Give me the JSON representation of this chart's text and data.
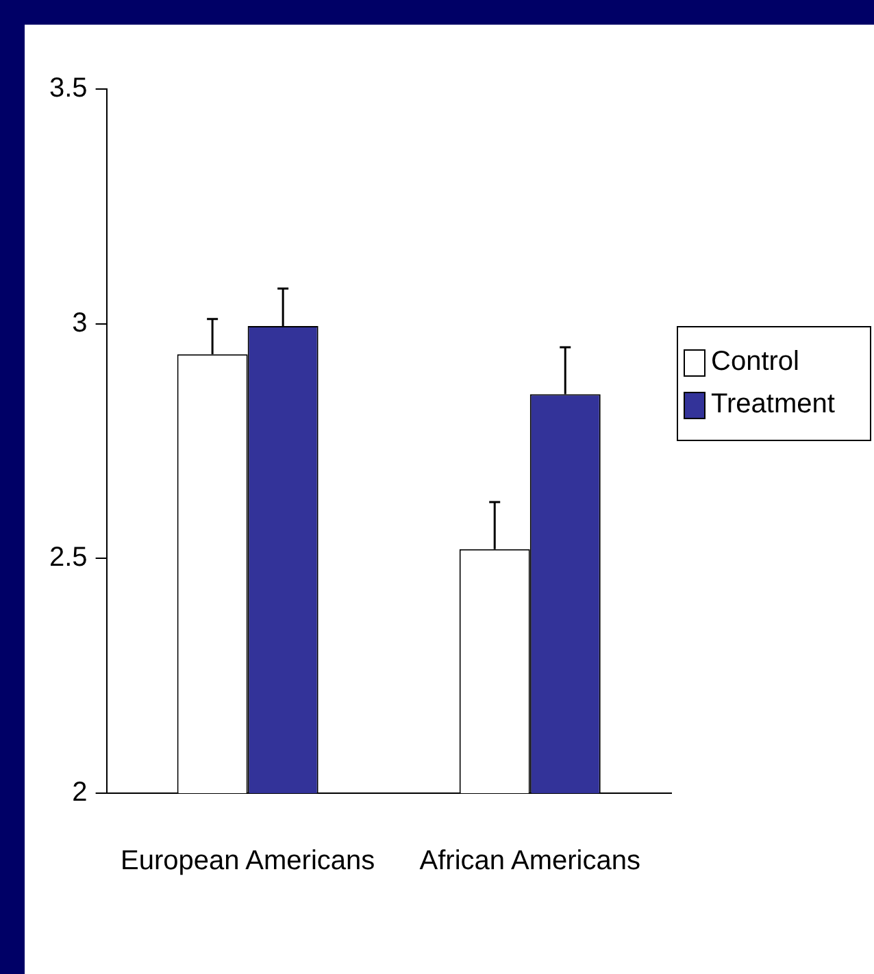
{
  "chart_data": {
    "type": "bar",
    "categories": [
      "European Americans",
      "African Americans"
    ],
    "series": [
      {
        "name": "Control",
        "color": "#ffffff",
        "values": [
          2.935,
          2.52
        ],
        "errors": [
          0.075,
          0.1
        ]
      },
      {
        "name": "Treatment",
        "color": "#333399",
        "values": [
          2.995,
          2.85
        ],
        "errors": [
          0.08,
          0.1
        ]
      }
    ],
    "ylim": [
      2,
      3.5
    ],
    "yticks": [
      2,
      2.5,
      3,
      3.5
    ],
    "grid": false,
    "legend": "right"
  }
}
